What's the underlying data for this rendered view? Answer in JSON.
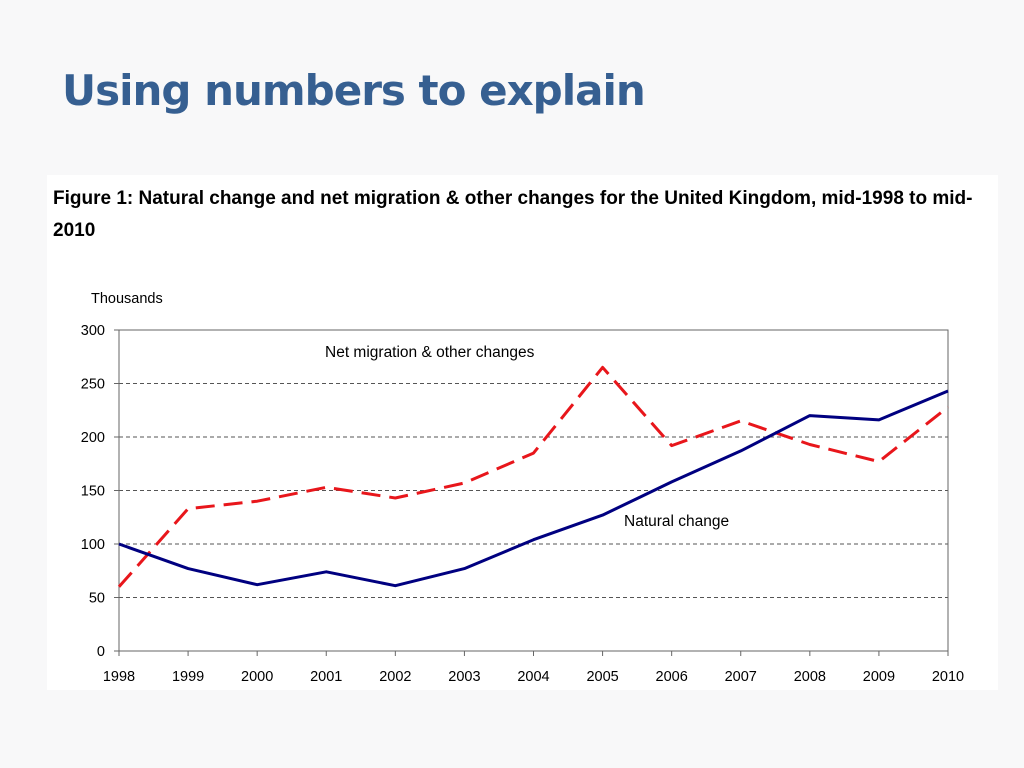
{
  "slide": {
    "title": "Using numbers to explain"
  },
  "figure": {
    "caption": "Figure 1:  Natural change and net migration & other changes for the United Kingdom, mid-1998 to mid-2010"
  },
  "colors": {
    "title": "#365f91",
    "natural_change": "#000080",
    "net_migration": "#e8161b",
    "gridline": "#555555"
  },
  "chart_data": {
    "type": "line",
    "ylabel": "Thousands",
    "xlabel": "",
    "ylim": [
      0,
      300
    ],
    "yticks": [
      0,
      50,
      100,
      150,
      200,
      250,
      300
    ],
    "grid": "horizontal-dashed",
    "legend": "inline-labels",
    "x": [
      "1998",
      "1999",
      "2000",
      "2001",
      "2002",
      "2003",
      "2004",
      "2005",
      "2006",
      "2007",
      "2008",
      "2009",
      "2010"
    ],
    "series": [
      {
        "name": "Net migration & other changes",
        "style": "dashed",
        "color": "#e8161b",
        "values": [
          60,
          133,
          140,
          153,
          143,
          157,
          185,
          265,
          192,
          215,
          193,
          177,
          228
        ]
      },
      {
        "name": "Natural change",
        "style": "solid",
        "color": "#000080",
        "values": [
          100,
          77,
          62,
          74,
          61,
          77,
          104,
          127,
          158,
          187,
          220,
          216,
          243
        ]
      }
    ]
  }
}
